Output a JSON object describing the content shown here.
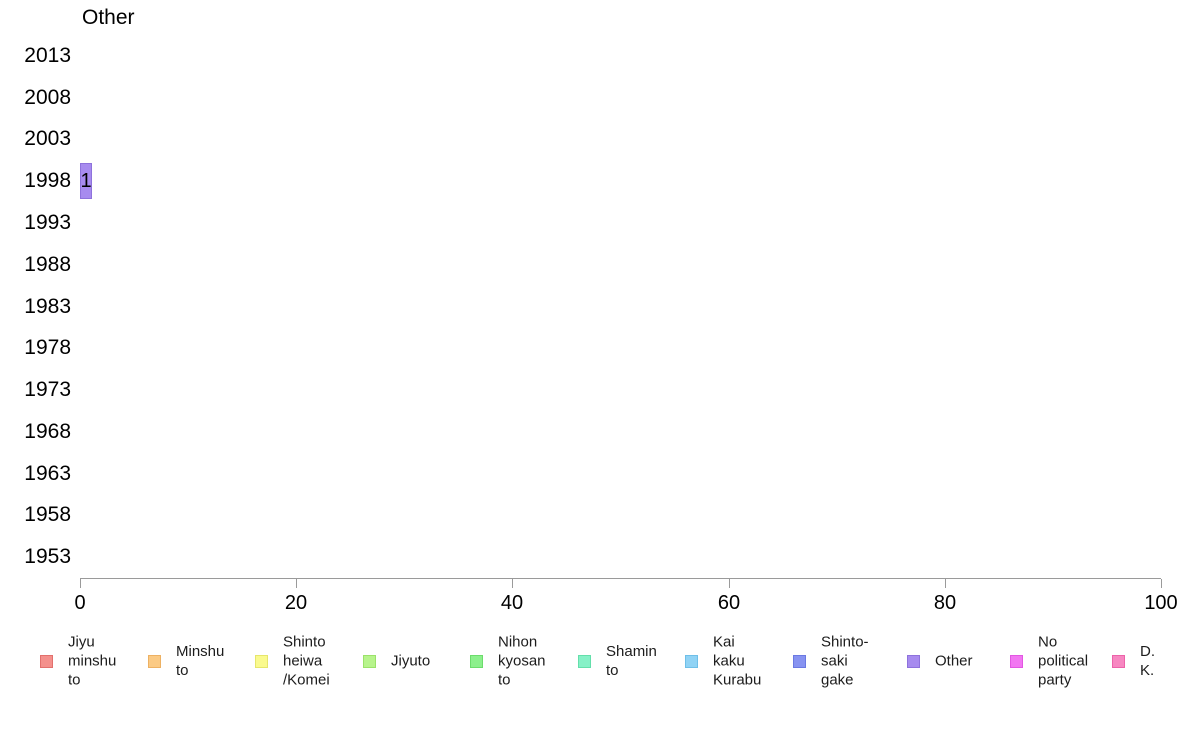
{
  "chart_data": {
    "type": "bar",
    "orientation": "horizontal",
    "title": "Other",
    "categories": [
      "2013",
      "2008",
      "2003",
      "1998",
      "1993",
      "1988",
      "1983",
      "1978",
      "1973",
      "1968",
      "1963",
      "1958",
      "1953"
    ],
    "values": [
      0,
      0,
      0,
      1,
      0,
      0,
      0,
      0,
      0,
      0,
      0,
      0,
      0
    ],
    "bar_labels": [
      "",
      "",
      "",
      "1",
      "",
      "",
      "",
      "",
      "",
      "",
      "",
      "",
      ""
    ],
    "bar_color": {
      "fill": "#a78bef",
      "border": "#8e72dc"
    },
    "xlabel": "",
    "ylabel": "",
    "xlim": [
      0,
      100
    ],
    "x_ticks": [
      "0",
      "20",
      "40",
      "60",
      "80",
      "100"
    ],
    "grid": false,
    "legend_position": "bottom",
    "axis_color": "#9a9a9a",
    "legend": [
      {
        "label": "Jiyu minshu to",
        "lines": [
          "Jiyu",
          "minshu",
          "to"
        ],
        "fill": "#f4908c",
        "border": "#e2706d"
      },
      {
        "label": "Minshu to",
        "lines": [
          "Minshu",
          "to"
        ],
        "fill": "#fbca84",
        "border": "#edb163"
      },
      {
        "label": "Shinto heiwa /Komei",
        "lines": [
          "Shinto",
          "heiwa",
          "/Komei"
        ],
        "fill": "#fafa8e",
        "border": "#e6e66c"
      },
      {
        "label": "Jiyuto",
        "lines": [
          "Jiyuto"
        ],
        "fill": "#b7f48c",
        "border": "#9be26a"
      },
      {
        "label": "Nihon kyosan to",
        "lines": [
          "Nihon",
          "kyosan",
          "to"
        ],
        "fill": "#8cf08c",
        "border": "#6cdc6c"
      },
      {
        "label": "Shamin to",
        "lines": [
          "Shamin",
          "to"
        ],
        "fill": "#86f1c7",
        "border": "#64dfab"
      },
      {
        "label": "Kai kaku Kurabu",
        "lines": [
          "Kai",
          "kaku",
          "Kurabu"
        ],
        "fill": "#90d3f5",
        "border": "#6fbfe8"
      },
      {
        "label": "Shinto-saki gake",
        "lines": [
          "Shinto-",
          "saki",
          "gake"
        ],
        "fill": "#8793f1",
        "border": "#6b79e2"
      },
      {
        "label": "Other",
        "lines": [
          "Other"
        ],
        "fill": "#a78bef",
        "border": "#8e72dc"
      },
      {
        "label": "No political party",
        "lines": [
          "No",
          "political",
          "party"
        ],
        "fill": "#f276f2",
        "border": "#e257e2"
      },
      {
        "label": "D. K.",
        "lines": [
          "D. K."
        ],
        "fill": "#f787c1",
        "border": "#ec63a9"
      }
    ]
  }
}
